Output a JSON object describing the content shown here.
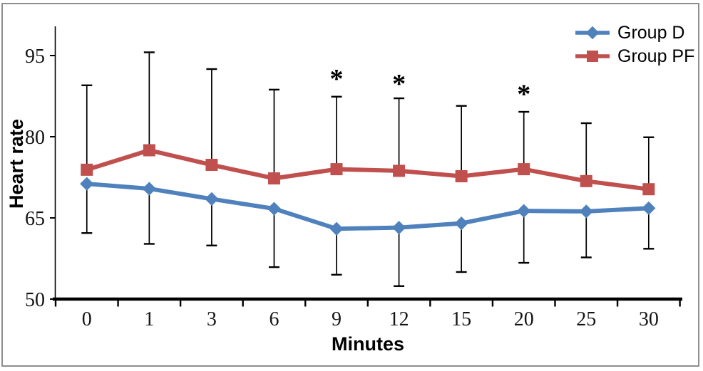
{
  "figure": {
    "y_axis_title": "Heart rate",
    "x_axis_title": "Minutes"
  },
  "chart_data": {
    "type": "line",
    "title": "",
    "xlabel": "Minutes",
    "ylabel": "Heart rate",
    "categories": [
      "0",
      "1",
      "3",
      "6",
      "9",
      "12",
      "15",
      "20",
      "25",
      "30"
    ],
    "series": [
      {
        "name": "Group D",
        "color": "#4F81BD",
        "marker": "diamond",
        "error_bar_direction": "down",
        "values": [
          71.3,
          70.4,
          68.5,
          66.7,
          63.0,
          63.2,
          64.0,
          66.3,
          66.2,
          66.8
        ],
        "error_lower_cap": [
          62.2,
          60.2,
          59.9,
          55.9,
          54.5,
          52.4,
          55.0,
          56.7,
          57.7,
          59.3
        ]
      },
      {
        "name": "Group PF",
        "color": "#C0504D",
        "marker": "square",
        "error_bar_direction": "up",
        "values": [
          73.9,
          77.5,
          74.8,
          72.3,
          74.0,
          73.7,
          72.7,
          74.0,
          71.8,
          70.3
        ],
        "error_upper_cap": [
          89.5,
          95.6,
          92.5,
          88.7,
          87.4,
          87.1,
          85.7,
          84.6,
          82.5,
          79.9
        ]
      }
    ],
    "annotations": [
      {
        "category": "9",
        "text": "*",
        "y": 91.3
      },
      {
        "category": "12",
        "text": "*",
        "y": 90.4
      },
      {
        "category": "20",
        "text": "*",
        "y": 88.5
      }
    ],
    "y_ticks": [
      50,
      65,
      80,
      95
    ],
    "ylim": [
      50,
      100
    ],
    "grid": false,
    "legend_position": "top-right",
    "axis_color": "#000000",
    "error_bar_color": "#000000"
  }
}
